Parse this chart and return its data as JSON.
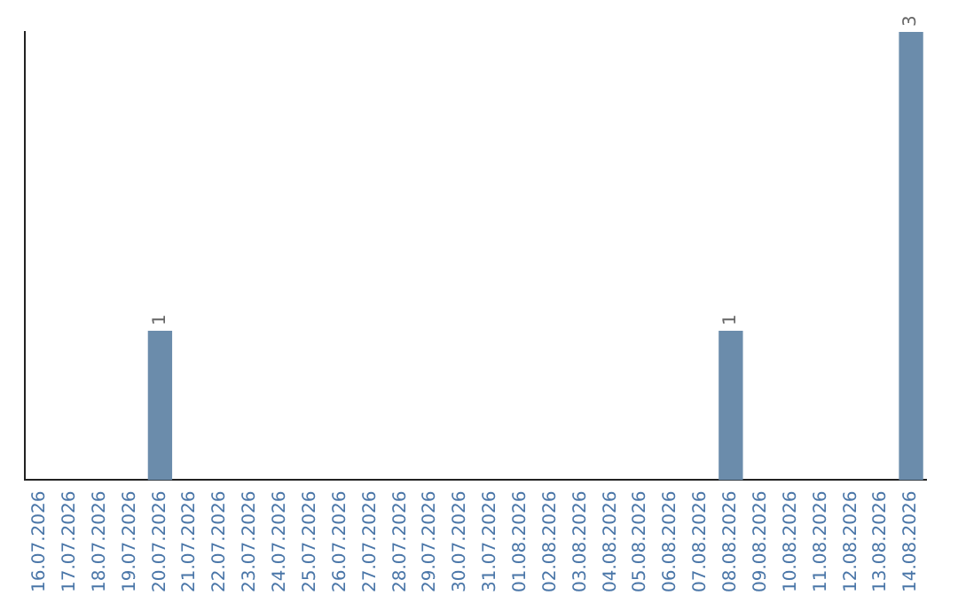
{
  "chart_data": {
    "type": "bar",
    "categories": [
      "16.07.2026",
      "17.07.2026",
      "18.07.2026",
      "19.07.2026",
      "20.07.2026",
      "21.07.2026",
      "22.07.2026",
      "23.07.2026",
      "24.07.2026",
      "25.07.2026",
      "26.07.2026",
      "27.07.2026",
      "28.07.2026",
      "29.07.2026",
      "30.07.2026",
      "31.07.2026",
      "01.08.2026",
      "02.08.2026",
      "03.08.2026",
      "04.08.2026",
      "05.08.2026",
      "06.08.2026",
      "07.08.2026",
      "08.08.2026",
      "09.08.2026",
      "10.08.2026",
      "11.08.2026",
      "12.08.2026",
      "13.08.2026",
      "14.08.2026"
    ],
    "values": [
      0,
      0,
      0,
      0,
      1,
      0,
      0,
      0,
      0,
      0,
      0,
      0,
      0,
      0,
      0,
      0,
      0,
      0,
      0,
      0,
      0,
      0,
      0,
      1,
      0,
      0,
      0,
      0,
      0,
      3
    ],
    "value_labels": [
      null,
      null,
      null,
      null,
      "1",
      null,
      null,
      null,
      null,
      null,
      null,
      null,
      null,
      null,
      null,
      null,
      null,
      null,
      null,
      null,
      null,
      null,
      null,
      "1",
      null,
      null,
      null,
      null,
      null,
      "3"
    ],
    "color": "#6b8cab",
    "grid": false,
    "legend": false,
    "tick_labels": "x"
  }
}
